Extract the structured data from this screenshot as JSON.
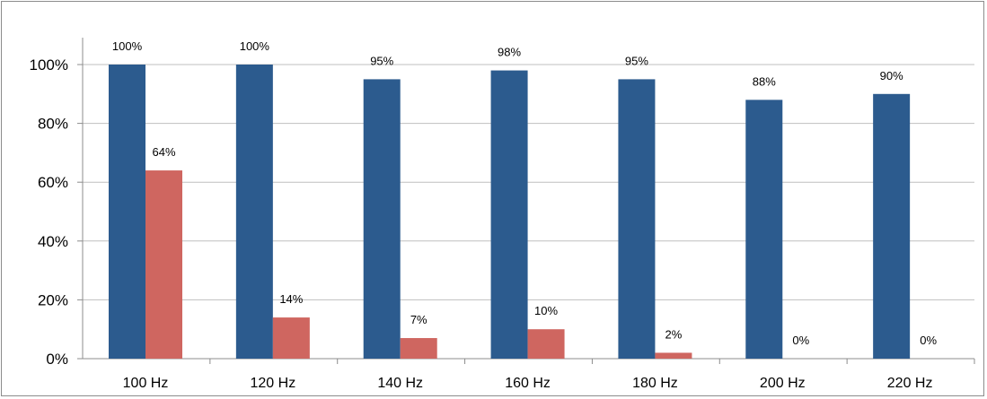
{
  "chart_data": {
    "type": "bar",
    "categories": [
      "100 Hz",
      "120 Hz",
      "140 Hz",
      "160 Hz",
      "180 Hz",
      "200 Hz",
      "220 Hz"
    ],
    "series": [
      {
        "values": [
          100,
          100,
          95,
          98,
          95,
          88,
          90
        ],
        "data_labels": [
          "100%",
          "100%",
          "95%",
          "98%",
          "95%",
          "88%",
          "90%"
        ],
        "color": "#2c5b8e"
      },
      {
        "values": [
          64,
          14,
          7,
          10,
          2,
          0,
          0
        ],
        "data_labels": [
          "64%",
          "14%",
          "7%",
          "10%",
          "2%",
          "0%",
          "0%"
        ],
        "color": "#cf6660"
      }
    ],
    "yticks": [
      "0%",
      "20%",
      "40%",
      "60%",
      "80%",
      "100%"
    ],
    "ylim": [
      0,
      100
    ],
    "grid": true,
    "legend": "none",
    "title": "",
    "xlabel": "",
    "ylabel": ""
  }
}
